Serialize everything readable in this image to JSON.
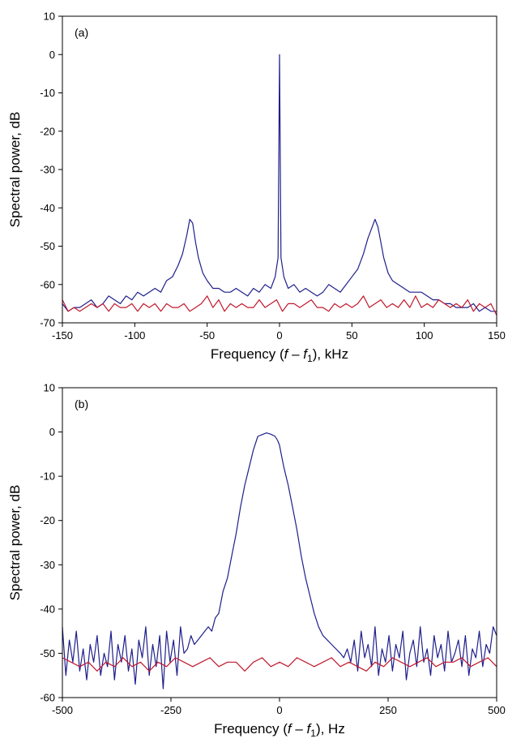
{
  "chart_data": [
    {
      "type": "line",
      "panel_label": "(a)",
      "xlabel": "Frequency (f – f1), kHz",
      "xlabel_parts": {
        "prefix": "Frequency (",
        "var": "f",
        "minus": " – ",
        "var2": "f",
        "sub": "1",
        "suffix": "), kHz"
      },
      "ylabel": "Spectral power, dB",
      "xlim": [
        -150,
        150
      ],
      "ylim": [
        -70,
        10
      ],
      "xticks": [
        -150,
        -100,
        -50,
        0,
        50,
        100,
        150
      ],
      "yticks": [
        10,
        0,
        -10,
        -20,
        -30,
        -40,
        -50,
        -60,
        -70
      ],
      "series": [
        {
          "color": "#1f1f8c",
          "x": [
            -150,
            -146,
            -142,
            -138,
            -134,
            -130,
            -126,
            -122,
            -118,
            -114,
            -110,
            -106,
            -102,
            -98,
            -94,
            -90,
            -86,
            -82,
            -78,
            -74,
            -70,
            -67,
            -64,
            -62,
            -60,
            -58,
            -56,
            -53,
            -50,
            -46,
            -42,
            -38,
            -34,
            -30,
            -26,
            -22,
            -18,
            -14,
            -10,
            -6,
            -3,
            -1,
            0,
            1,
            3,
            6,
            10,
            14,
            18,
            22,
            26,
            30,
            34,
            38,
            42,
            46,
            50,
            54,
            58,
            61,
            64,
            66,
            68,
            70,
            72,
            75,
            78,
            82,
            86,
            90,
            94,
            98,
            102,
            106,
            110,
            114,
            118,
            122,
            126,
            130,
            134,
            138,
            142,
            146,
            150
          ],
          "y": [
            -65,
            -67,
            -66,
            -66,
            -65,
            -64,
            -66,
            -65,
            -63,
            -64,
            -65,
            -63,
            -64,
            -62,
            -63,
            -62,
            -61,
            -62,
            -59,
            -58,
            -55,
            -52,
            -47,
            -43,
            -44,
            -49,
            -53,
            -57,
            -59,
            -61,
            -61,
            -62,
            -62,
            -61,
            -62,
            -63,
            -61,
            -62,
            -60,
            -61,
            -58,
            -53,
            0,
            -53,
            -58,
            -61,
            -60,
            -62,
            -61,
            -62,
            -63,
            -62,
            -60,
            -61,
            -62,
            -60,
            -58,
            -56,
            -52,
            -48,
            -45,
            -43,
            -45,
            -49,
            -53,
            -57,
            -59,
            -60,
            -61,
            -62,
            -62,
            -62,
            -63,
            -64,
            -64,
            -65,
            -65,
            -66,
            -66,
            -66,
            -65,
            -67,
            -66,
            -67,
            -67
          ]
        },
        {
          "color": "#c0182b",
          "x": [
            -150,
            -146,
            -142,
            -138,
            -134,
            -130,
            -126,
            -122,
            -118,
            -114,
            -110,
            -106,
            -102,
            -98,
            -94,
            -90,
            -86,
            -82,
            -78,
            -74,
            -70,
            -66,
            -62,
            -58,
            -54,
            -50,
            -46,
            -42,
            -38,
            -34,
            -30,
            -26,
            -22,
            -18,
            -14,
            -10,
            -6,
            -2,
            2,
            6,
            10,
            14,
            18,
            22,
            26,
            30,
            34,
            38,
            42,
            46,
            50,
            54,
            58,
            62,
            66,
            70,
            74,
            78,
            82,
            86,
            90,
            94,
            98,
            102,
            106,
            110,
            114,
            118,
            122,
            126,
            130,
            134,
            138,
            142,
            146,
            150
          ],
          "y": [
            -64,
            -67,
            -66,
            -67,
            -66,
            -65,
            -66,
            -65,
            -67,
            -65,
            -66,
            -66,
            -65,
            -67,
            -65,
            -66,
            -65,
            -67,
            -65,
            -66,
            -66,
            -65,
            -67,
            -66,
            -65,
            -63,
            -66,
            -64,
            -67,
            -65,
            -66,
            -65,
            -66,
            -66,
            -64,
            -66,
            -65,
            -64,
            -67,
            -65,
            -65,
            -66,
            -65,
            -64,
            -66,
            -66,
            -67,
            -65,
            -66,
            -65,
            -66,
            -65,
            -63,
            -66,
            -65,
            -64,
            -66,
            -65,
            -66,
            -64,
            -66,
            -63,
            -66,
            -65,
            -66,
            -64,
            -65,
            -66,
            -65,
            -66,
            -64,
            -67,
            -65,
            -66,
            -65,
            -68
          ]
        }
      ]
    },
    {
      "type": "line",
      "panel_label": "(b)",
      "xlabel": "Frequency (f – f1), Hz",
      "xlabel_parts": {
        "prefix": "Frequency (",
        "var": "f",
        "minus": " – ",
        "var2": "f",
        "sub": "1",
        "suffix": "), Hz"
      },
      "ylabel": "Spectral power, dB",
      "xlim": [
        -500,
        500
      ],
      "ylim": [
        -60,
        10
      ],
      "xticks": [
        -500,
        -250,
        0,
        250,
        500
      ],
      "yticks": [
        10,
        0,
        -10,
        -20,
        -30,
        -40,
        -50,
        -60
      ],
      "series": [
        {
          "color": "#1f1f8c",
          "x": [
            -500,
            -492,
            -484,
            -476,
            -468,
            -460,
            -452,
            -444,
            -436,
            -428,
            -420,
            -412,
            -404,
            -396,
            -388,
            -380,
            -372,
            -364,
            -356,
            -348,
            -340,
            -332,
            -324,
            -316,
            -308,
            -300,
            -292,
            -284,
            -276,
            -268,
            -260,
            -252,
            -244,
            -236,
            -228,
            -220,
            -212,
            -204,
            -196,
            -188,
            -180,
            -172,
            -164,
            -156,
            -148,
            -140,
            -130,
            -120,
            -110,
            -100,
            -90,
            -80,
            -70,
            -60,
            -50,
            -40,
            -30,
            -20,
            -10,
            -4,
            0,
            4,
            10,
            20,
            30,
            40,
            50,
            60,
            70,
            80,
            90,
            100,
            110,
            120,
            130,
            140,
            148,
            156,
            164,
            172,
            180,
            188,
            196,
            204,
            212,
            220,
            228,
            236,
            244,
            252,
            260,
            268,
            276,
            284,
            292,
            300,
            308,
            316,
            324,
            332,
            340,
            348,
            356,
            364,
            372,
            380,
            388,
            396,
            404,
            412,
            420,
            428,
            436,
            444,
            452,
            460,
            468,
            476,
            484,
            492,
            500
          ],
          "y": [
            -44,
            -55,
            -47,
            -52,
            -45,
            -54,
            -49,
            -56,
            -48,
            -52,
            -46,
            -55,
            -50,
            -53,
            -45,
            -56,
            -48,
            -52,
            -46,
            -54,
            -49,
            -57,
            -47,
            -51,
            -44,
            -55,
            -48,
            -53,
            -46,
            -58,
            -45,
            -52,
            -47,
            -55,
            -44,
            -50,
            -49,
            -46,
            -48,
            -47,
            -46,
            -45,
            -44,
            -45,
            -42,
            -41,
            -36,
            -33,
            -28,
            -23,
            -17,
            -12,
            -8,
            -4,
            -1,
            -0.6,
            -0.2,
            -0.5,
            -1,
            -2,
            -3,
            -5,
            -8,
            -12,
            -17,
            -22,
            -28,
            -33,
            -37,
            -41,
            -44,
            -46,
            -47,
            -48,
            -49,
            -50,
            -51,
            -49,
            -52,
            -47,
            -54,
            -45,
            -51,
            -48,
            -53,
            -44,
            -55,
            -49,
            -52,
            -46,
            -54,
            -48,
            -51,
            -45,
            -56,
            -50,
            -47,
            -53,
            -44,
            -52,
            -49,
            -55,
            -46,
            -51,
            -48,
            -54,
            -45,
            -52,
            -50,
            -47,
            -53,
            -46,
            -55,
            -49,
            -51,
            -45,
            -53,
            -48,
            -50,
            -44,
            -46
          ]
        },
        {
          "color": "#c0182b",
          "x": [
            -500,
            -480,
            -460,
            -440,
            -420,
            -400,
            -380,
            -360,
            -340,
            -320,
            -300,
            -280,
            -260,
            -240,
            -220,
            -200,
            -180,
            -160,
            -140,
            -120,
            -100,
            -80,
            -60,
            -40,
            -20,
            0,
            20,
            40,
            60,
            80,
            100,
            120,
            140,
            160,
            180,
            200,
            220,
            240,
            260,
            280,
            300,
            320,
            340,
            360,
            380,
            400,
            420,
            440,
            460,
            480,
            500
          ],
          "y": [
            -51,
            -52,
            -53,
            -52,
            -54,
            -52,
            -53,
            -51,
            -53,
            -52,
            -54,
            -52,
            -53,
            -51,
            -52,
            -53,
            -52,
            -51,
            -53,
            -52,
            -52,
            -54,
            -52,
            -51,
            -53,
            -52,
            -53,
            -51,
            -52,
            -53,
            -52,
            -51,
            -53,
            -52,
            -53,
            -54,
            -52,
            -53,
            -51,
            -52,
            -53,
            -52,
            -51,
            -53,
            -52,
            -52,
            -51,
            -53,
            -52,
            -51,
            -53
          ]
        }
      ]
    }
  ]
}
